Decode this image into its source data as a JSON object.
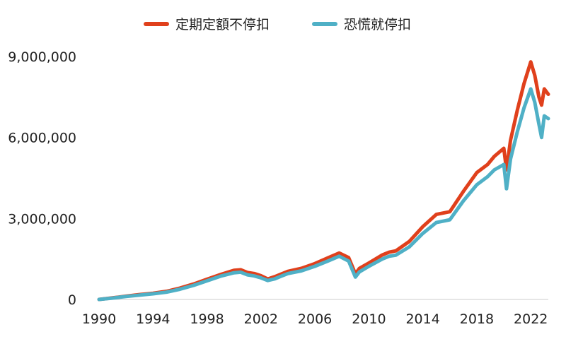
{
  "chart_data": {
    "type": "line",
    "title": "",
    "xlabel": "",
    "ylabel": "",
    "xlim": [
      1990,
      2023.3
    ],
    "ylim": [
      0,
      9000000
    ],
    "grid": false,
    "legend_position": "top-center",
    "x_ticks": [
      1990,
      1994,
      1998,
      2002,
      2006,
      2010,
      2014,
      2018,
      2022
    ],
    "x_tick_labels": [
      "1990",
      "1994",
      "1998",
      "2002",
      "2006",
      "2010",
      "2014",
      "2018",
      "2022"
    ],
    "y_ticks": [
      0,
      3000000,
      6000000,
      9000000
    ],
    "y_tick_labels": [
      "0",
      "3,000,000",
      "6,000,000",
      "9,000,000"
    ],
    "series": [
      {
        "name": "定期定額不停扣",
        "color": "#e0401c",
        "x": [
          1990,
          1990.5,
          1991,
          1991.5,
          1992,
          1993,
          1994,
          1995,
          1996,
          1997,
          1998,
          1999,
          2000,
          2000.5,
          2001,
          2001.5,
          2002,
          2002.5,
          2003,
          2003.5,
          2004,
          2005,
          2006,
          2007,
          2007.8,
          2008.5,
          2009.0,
          2009.3,
          2010,
          2011,
          2011.5,
          2012,
          2013,
          2014,
          2015,
          2016,
          2017,
          2018,
          2018.8,
          2019.3,
          2020.0,
          2020.2,
          2020.5,
          2021,
          2021.5,
          2022.0,
          2022.3,
          2022.6,
          2022.8,
          2023.0,
          2023.3
        ],
        "y": [
          0,
          30000,
          60000,
          90000,
          120000,
          180000,
          230000,
          300000,
          420000,
          570000,
          750000,
          920000,
          1080000,
          1100000,
          1000000,
          960000,
          880000,
          760000,
          840000,
          940000,
          1040000,
          1150000,
          1330000,
          1550000,
          1720000,
          1550000,
          950000,
          1150000,
          1350000,
          1650000,
          1750000,
          1800000,
          2150000,
          2700000,
          3150000,
          3250000,
          4000000,
          4700000,
          5000000,
          5300000,
          5600000,
          4800000,
          5900000,
          7000000,
          8000000,
          8800000,
          8300000,
          7500000,
          7200000,
          7800000,
          7600000
        ]
      },
      {
        "name": "恐慌就停扣",
        "color": "#4fb0c6",
        "x": [
          1990,
          1990.5,
          1991,
          1991.5,
          1992,
          1993,
          1994,
          1995,
          1996,
          1997,
          1998,
          1999,
          2000,
          2000.5,
          2001,
          2001.5,
          2002,
          2002.5,
          2003,
          2003.5,
          2004,
          2005,
          2006,
          2007,
          2007.8,
          2008.5,
          2009.0,
          2009.3,
          2010,
          2011,
          2011.5,
          2012,
          2013,
          2014,
          2015,
          2016,
          2017,
          2018,
          2018.8,
          2019.3,
          2020.0,
          2020.2,
          2020.5,
          2021,
          2021.5,
          2022.0,
          2022.3,
          2022.6,
          2022.8,
          2023.0,
          2023.3
        ],
        "y": [
          0,
          25000,
          50000,
          80000,
          110000,
          160000,
          210000,
          270000,
          380000,
          520000,
          690000,
          860000,
          990000,
          1010000,
          910000,
          870000,
          800000,
          700000,
          760000,
          860000,
          960000,
          1060000,
          1230000,
          1430000,
          1600000,
          1420000,
          830000,
          1020000,
          1230000,
          1500000,
          1600000,
          1640000,
          1950000,
          2450000,
          2850000,
          2950000,
          3650000,
          4250000,
          4550000,
          4800000,
          5000000,
          4100000,
          5200000,
          6200000,
          7100000,
          7800000,
          7300000,
          6500000,
          6000000,
          6800000,
          6700000
        ]
      }
    ]
  }
}
